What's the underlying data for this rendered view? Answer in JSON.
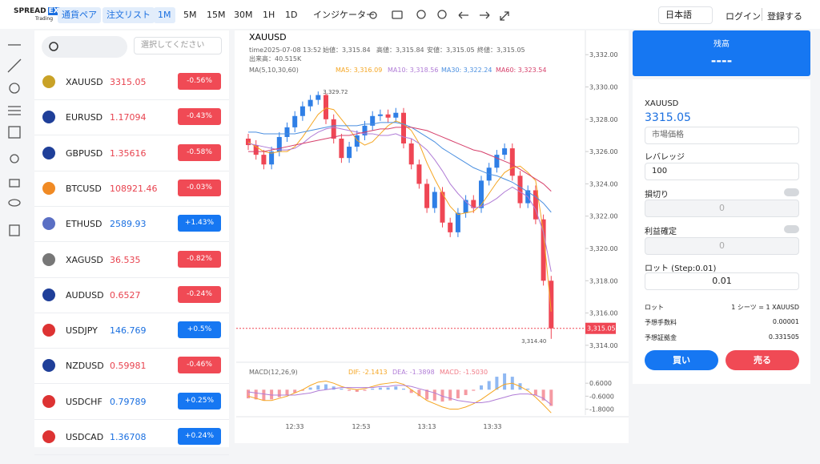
{
  "header": {
    "logo": {
      "main": "SPREAD",
      "badge": "EX",
      "sub": "Trading"
    },
    "tabs": [
      "通貨ペア",
      "注文リスト"
    ],
    "intervals": [
      "1M",
      "5M",
      "15M",
      "30M",
      "1H",
      "1D"
    ],
    "active_interval": "1M",
    "indicator_button": "インジケーター",
    "language": "日本語",
    "login": "ログイン",
    "register": "登録する"
  },
  "watchlist": {
    "select_placeholder": "選択してください",
    "rows": [
      {
        "symbol": "XAUUSD",
        "price": "3315.05",
        "change": "-0.56%"
      },
      {
        "symbol": "EURUSD",
        "price": "1.17094",
        "change": "-0.43%"
      },
      {
        "symbol": "GBPUSD",
        "price": "1.35616",
        "change": "-0.58%"
      },
      {
        "symbol": "BTCUSD",
        "price": "108921.46",
        "change": "-0.03%"
      },
      {
        "symbol": "ETHUSD",
        "price": "2589.93",
        "change": "+1.43%"
      },
      {
        "symbol": "XAGUSD",
        "price": "36.535",
        "change": "-0.82%"
      },
      {
        "symbol": "AUDUSD",
        "price": "0.6527",
        "change": "-0.24%"
      },
      {
        "symbol": "USDJPY",
        "price": "146.769",
        "change": "+0.5%"
      },
      {
        "symbol": "NZDUSD",
        "price": "0.59981",
        "change": "-0.46%"
      },
      {
        "symbol": "USDCHF",
        "price": "0.79789",
        "change": "+0.25%"
      },
      {
        "symbol": "USDCAD",
        "price": "1.36708",
        "change": "+0.24%"
      }
    ]
  },
  "chart_data": [
    {
      "type": "candlestick",
      "title": "XAUUSD",
      "info": [
        "time2025-07-08 13:52",
        "始値：3,315.84",
        "高値：3,315.84",
        "安値：3,315.05",
        "終値：3,315.05"
      ],
      "volume": "出来高：40.515K",
      "ma_title": "MA(5,10,30,60)",
      "up_color": "#2f7fe6",
      "down_color": "#ef4654",
      "open": [
        3326.8,
        3326.4,
        3325.8,
        3325.2,
        3326.0,
        3326.9,
        3327.5,
        3328.2,
        3328.8,
        3329.2,
        3329.5,
        3328.0,
        3326.8,
        3325.6,
        3326.3,
        3327.0,
        3327.6,
        3328.2,
        3328.3,
        3328.1,
        3328.4,
        3326.5,
        3325.2,
        3324.0,
        3322.5,
        3323.5,
        3321.6,
        3321.0,
        3322.2,
        3323.0,
        3322.5,
        3324.2,
        3325.0,
        3325.8,
        3326.2,
        3324.5,
        3322.8,
        3323.6,
        3321.8,
        3318.0
      ],
      "high": [
        3327.1,
        3326.7,
        3326.1,
        3326.3,
        3327.2,
        3327.8,
        3328.5,
        3329.1,
        3329.5,
        3329.72,
        3329.6,
        3328.3,
        3327.1,
        3326.6,
        3327.3,
        3327.9,
        3328.5,
        3328.6,
        3328.6,
        3328.7,
        3328.7,
        3326.8,
        3325.5,
        3324.3,
        3323.8,
        3323.8,
        3321.9,
        3322.5,
        3323.3,
        3323.3,
        3324.5,
        3325.3,
        3326.1,
        3326.5,
        3326.5,
        3324.8,
        3323.9,
        3323.9,
        3322.1,
        3318.3
      ],
      "low": [
        3326.1,
        3325.5,
        3324.9,
        3324.9,
        3325.7,
        3326.6,
        3327.2,
        3327.9,
        3328.5,
        3328.9,
        3327.7,
        3326.5,
        3325.3,
        3325.3,
        3326.0,
        3326.7,
        3327.3,
        3327.9,
        3327.8,
        3327.8,
        3326.2,
        3324.9,
        3323.7,
        3322.2,
        3322.2,
        3321.3,
        3320.7,
        3320.7,
        3321.9,
        3322.2,
        3322.2,
        3323.9,
        3324.7,
        3325.5,
        3324.2,
        3322.5,
        3322.5,
        3321.5,
        3317.7,
        3314.4
      ],
      "close": [
        3326.4,
        3325.8,
        3325.2,
        3326.0,
        3326.9,
        3327.5,
        3328.2,
        3328.8,
        3329.2,
        3329.5,
        3328.0,
        3326.8,
        3325.6,
        3326.3,
        3327.0,
        3327.6,
        3328.2,
        3328.3,
        3328.1,
        3328.4,
        3326.5,
        3325.2,
        3324.0,
        3322.5,
        3323.5,
        3321.6,
        3321.0,
        3322.2,
        3323.0,
        3322.5,
        3324.2,
        3325.0,
        3325.8,
        3326.2,
        3324.5,
        3322.8,
        3323.6,
        3321.8,
        3318.0,
        3315.05
      ],
      "series": [
        {
          "label": "MA5: 3,316.09",
          "color": "#f5a623",
          "values": [
            3326.6,
            3326.3,
            3326.0,
            3325.9,
            3326.0,
            3326.0,
            3326.3,
            3326.9,
            3327.6,
            3328.3,
            3328.7,
            3328.6,
            3328.0,
            3327.4,
            3326.7,
            3326.4,
            3326.6,
            3327.1,
            3327.6,
            3327.9,
            3327.7,
            3327.3,
            3326.5,
            3325.3,
            3324.3,
            3323.4,
            3322.6,
            3322.1,
            3322.2,
            3322.3,
            3322.7,
            3323.4,
            3324.1,
            3324.7,
            3325.0,
            3325.1,
            3324.7,
            3324.2,
            3321.0,
            3316.09
          ]
        },
        {
          "label": "MA10: 3,318.56",
          "color": "#b07cd6",
          "values": [
            3326.5,
            3326.4,
            3326.3,
            3326.2,
            3326.1,
            3326.1,
            3326.2,
            3326.5,
            3326.9,
            3327.2,
            3327.4,
            3327.5,
            3327.4,
            3327.3,
            3327.2,
            3327.1,
            3327.1,
            3327.0,
            3327.0,
            3327.1,
            3326.9,
            3326.8,
            3326.5,
            3326.1,
            3325.5,
            3324.8,
            3324.0,
            3323.4,
            3322.9,
            3322.5,
            3322.6,
            3322.8,
            3323.1,
            3323.5,
            3323.8,
            3323.5,
            3323.2,
            3322.4,
            3321.0,
            3318.56
          ]
        },
        {
          "label": "MA30: 3,322.24",
          "color": "#4a8fe0",
          "values": [
            3327.2,
            3327.2,
            3327.1,
            3327.1,
            3327.1,
            3327.1,
            3327.1,
            3327.2,
            3327.3,
            3327.4,
            3327.5,
            3327.6,
            3327.6,
            3327.6,
            3327.6,
            3327.7,
            3327.7,
            3327.8,
            3327.8,
            3327.8,
            3327.7,
            3327.5,
            3327.2,
            3326.9,
            3326.6,
            3326.2,
            3325.9,
            3325.6,
            3325.3,
            3325.0,
            3324.8,
            3324.6,
            3324.5,
            3324.3,
            3324.1,
            3323.8,
            3323.5,
            3323.2,
            3322.8,
            3322.24
          ]
        },
        {
          "label": "MA60: 3,323.54",
          "color": "#d6406b",
          "values": [
            3326.0,
            3326.0,
            3326.0,
            3326.1,
            3326.2,
            3326.3,
            3326.4,
            3326.5,
            3326.6,
            3326.7,
            3326.8,
            3326.9,
            3327.0,
            3327.0,
            3327.1,
            3327.2,
            3327.3,
            3327.4,
            3327.4,
            3327.5,
            3327.5,
            3327.5,
            3327.4,
            3327.3,
            3327.1,
            3326.9,
            3326.7,
            3326.5,
            3326.3,
            3326.1,
            3326.0,
            3325.8,
            3325.6,
            3325.4,
            3325.2,
            3324.9,
            3324.6,
            3324.3,
            3324.0,
            3323.54
          ]
        }
      ],
      "max_label": "3,329.72",
      "min_label": "3,314.40",
      "last_price": 3315.05,
      "last_price_label": "3,315.05",
      "ylim": [
        3313.3,
        3333.4
      ],
      "yticks": [
        {
          "value": 3332,
          "label": "3,332.00"
        },
        {
          "value": 3330,
          "label": "3,330.00"
        },
        {
          "value": 3328,
          "label": "3,328.00"
        },
        {
          "value": 3326,
          "label": "3,326.00"
        },
        {
          "value": 3324,
          "label": "3,324.00"
        },
        {
          "value": 3322,
          "label": "3,322.00"
        },
        {
          "value": 3320,
          "label": "3,320.00"
        },
        {
          "value": 3318,
          "label": "3,318.00"
        },
        {
          "value": 3316,
          "label": "3,316.00"
        },
        {
          "value": 3314,
          "label": "3,314.00"
        }
      ],
      "time_labels": [
        "12:33",
        "12:53",
        "13:13",
        "13:33"
      ]
    },
    {
      "type": "macd",
      "title": "MACD(12,26,9)",
      "values": [
        -0.8,
        -0.9,
        -1.0,
        -0.9,
        -0.7,
        -0.5,
        -0.3,
        -0.1,
        0.2,
        0.4,
        0.5,
        0.3,
        0.1,
        -0.1,
        -0.2,
        -0.1,
        0.1,
        0.2,
        0.2,
        0.3,
        0.1,
        -0.3,
        -0.6,
        -0.9,
        -1.0,
        -1.1,
        -1.0,
        -0.8,
        -0.5,
        -0.1,
        0.4,
        0.8,
        1.2,
        1.5,
        1.2,
        0.6,
        0.1,
        -0.5,
        -1.0,
        -1.503
      ],
      "up_color": "#8fb8f2",
      "down_color": "#f59aa2",
      "label": "MACD: -1.5030",
      "series": [
        {
          "label": "DIF: -2.1413",
          "color": "#f5a623",
          "values": [
            -0.6,
            -0.8,
            -1.0,
            -1.0,
            -0.8,
            -0.6,
            -0.3,
            0.0,
            0.4,
            0.7,
            0.8,
            0.6,
            0.3,
            0.1,
            0.0,
            0.1,
            0.3,
            0.5,
            0.6,
            0.7,
            0.5,
            0.0,
            -0.5,
            -1.0,
            -1.3,
            -1.6,
            -1.8,
            -1.8,
            -1.6,
            -1.3,
            -0.9,
            -0.4,
            0.1,
            0.5,
            0.6,
            0.3,
            -0.1,
            -0.7,
            -1.4,
            -2.1413
          ]
        },
        {
          "label": "DEA: -1.3898",
          "color": "#b07cd6",
          "values": [
            -0.2,
            -0.3,
            -0.4,
            -0.5,
            -0.5,
            -0.5,
            -0.5,
            -0.4,
            -0.3,
            -0.1,
            0.0,
            0.1,
            0.2,
            0.2,
            0.2,
            0.2,
            0.2,
            0.3,
            0.3,
            0.4,
            0.4,
            0.3,
            0.1,
            -0.1,
            -0.3,
            -0.6,
            -0.8,
            -1.0,
            -1.1,
            -1.2,
            -1.2,
            -1.1,
            -0.9,
            -0.7,
            -0.5,
            -0.4,
            -0.4,
            -0.5,
            -0.8,
            -1.3898
          ]
        }
      ],
      "ylim": [
        -2.5,
        1.8
      ],
      "yticks": [
        {
          "value": 0.6,
          "label": "0.6000"
        },
        {
          "value": -0.6,
          "label": "-0.6000"
        },
        {
          "value": -1.8,
          "label": "-1.8000"
        }
      ]
    }
  ],
  "order_panel": {
    "balance_title": "残高",
    "balance": "----",
    "symbol": "XAUUSD",
    "price": "3315.05",
    "order_type": "市場価格",
    "leverage_label": "レバレッジ",
    "leverage": "100",
    "stop_loss_label": "損切り",
    "stop_loss": "0",
    "take_profit_label": "利益確定",
    "take_profit": "0",
    "lot_label": "ロット (Step:0.01)",
    "lot": "0.01",
    "summary": [
      {
        "label": "ロット",
        "value": "1 シーツ = 1 XAUUSD"
      },
      {
        "label": "予想手数料",
        "value": "0.00001"
      },
      {
        "label": "予想証拠金",
        "value": "0.331505"
      }
    ],
    "buy": "買い",
    "sell": "売る"
  }
}
